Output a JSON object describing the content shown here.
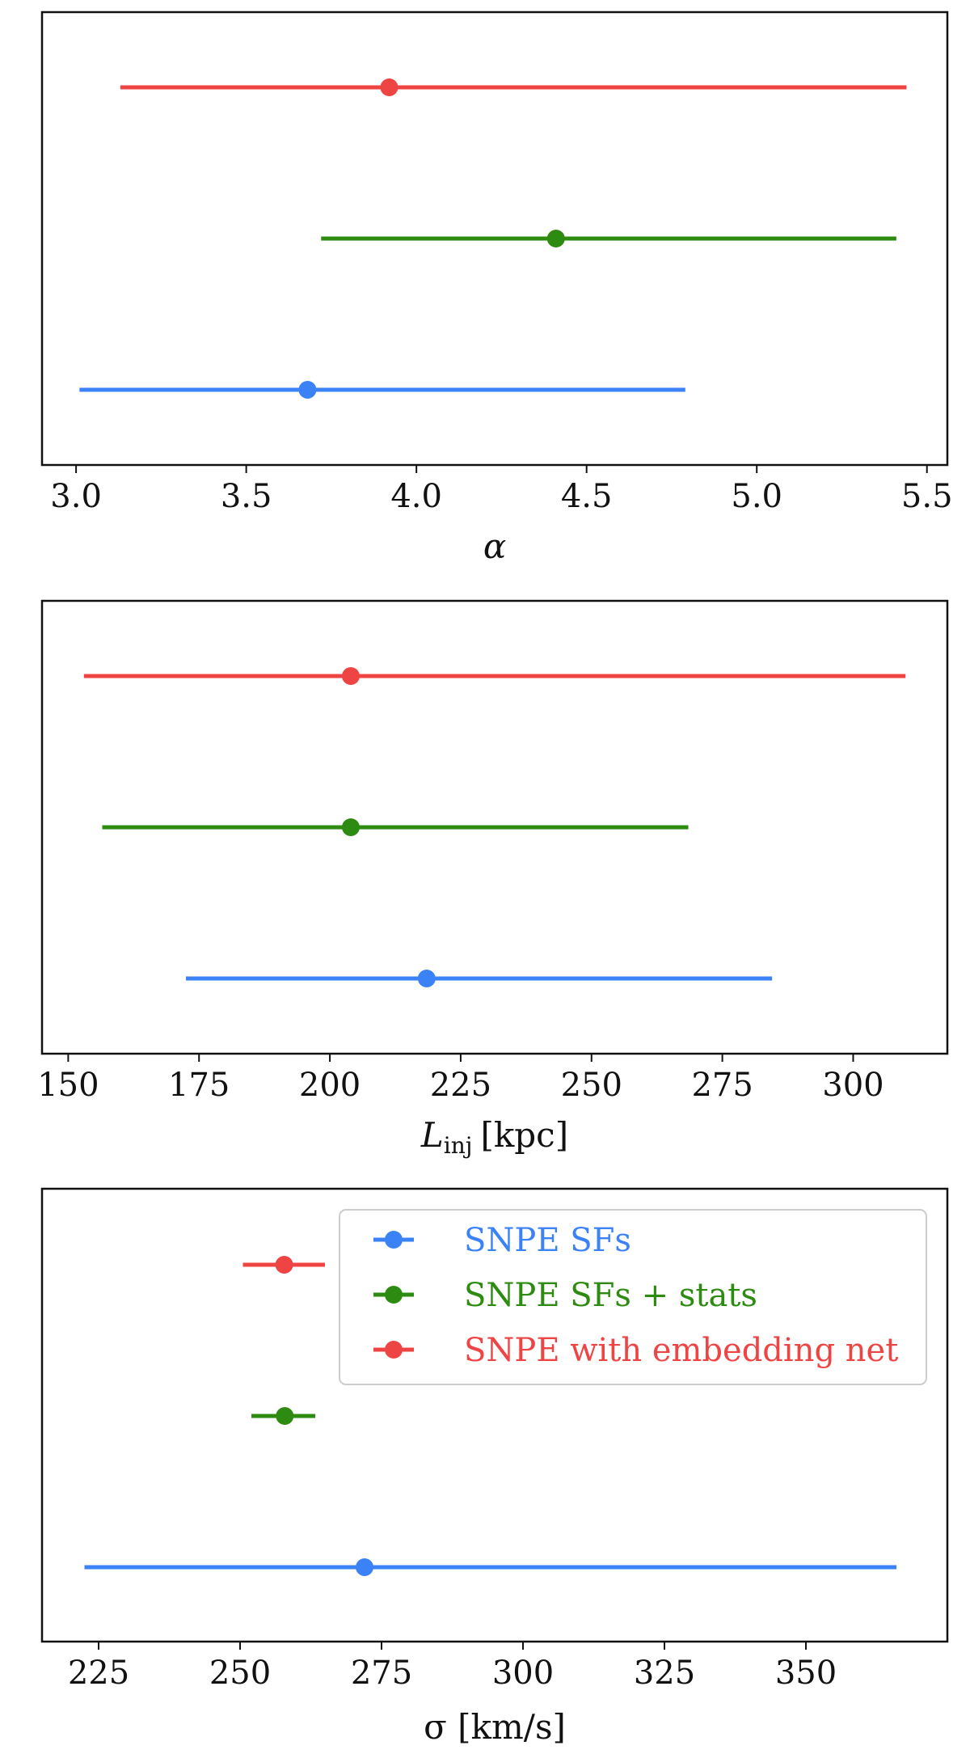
{
  "chart_data": [
    {
      "type": "errorbar",
      "title": "",
      "xlabel": "α",
      "xlim": [
        2.9,
        5.56
      ],
      "xticks": [
        3.0,
        3.5,
        4.0,
        4.5,
        5.0,
        5.5
      ],
      "xtick_labels": [
        "3.0",
        "3.5",
        "4.0",
        "4.5",
        "5.0",
        "5.5"
      ],
      "grid": false,
      "series": [
        {
          "name": "SNPE with embedding net",
          "color": "#ef4444",
          "value": 3.92,
          "low": 3.13,
          "high": 5.44
        },
        {
          "name": "SNPE SFs + stats",
          "color": "#2e8b11",
          "value": 4.41,
          "low": 3.72,
          "high": 5.41
        },
        {
          "name": "SNPE SFs",
          "color": "#3b82f6",
          "value": 3.68,
          "low": 3.01,
          "high": 4.79
        }
      ]
    },
    {
      "type": "errorbar",
      "title": "",
      "xlabel": "L_inj [kpc]",
      "xlabel_main": "L",
      "xlabel_sub": "inj",
      "xlabel_unit": "[kpc]",
      "xlim": [
        145,
        318
      ],
      "xticks": [
        150,
        175,
        200,
        225,
        250,
        275,
        300
      ],
      "xtick_labels": [
        "150",
        "175",
        "200",
        "225",
        "250",
        "275",
        "300"
      ],
      "grid": false,
      "series": [
        {
          "name": "SNPE with embedding net",
          "color": "#ef4444",
          "value": 204,
          "low": 153,
          "high": 310
        },
        {
          "name": "SNPE SFs + stats",
          "color": "#2e8b11",
          "value": 204,
          "low": 156.5,
          "high": 268.5
        },
        {
          "name": "SNPE SFs",
          "color": "#3b82f6",
          "value": 218.5,
          "low": 172.5,
          "high": 284.5
        }
      ]
    },
    {
      "type": "errorbar",
      "title": "",
      "xlabel": "σ [km/s]",
      "xlim": [
        215,
        375
      ],
      "xticks": [
        225,
        250,
        275,
        300,
        325,
        350
      ],
      "xtick_labels": [
        "225",
        "250",
        "275",
        "300",
        "325",
        "350"
      ],
      "grid": false,
      "legend": "top-right",
      "series": [
        {
          "name": "SNPE with embedding net",
          "color": "#ef4444",
          "value": 257.8,
          "low": 250.5,
          "high": 265
        },
        {
          "name": "SNPE SFs + stats",
          "color": "#2e8b11",
          "value": 257.9,
          "low": 252,
          "high": 263.3
        },
        {
          "name": "SNPE SFs",
          "color": "#3b82f6",
          "value": 272,
          "low": 222.5,
          "high": 366
        }
      ]
    }
  ],
  "legend": {
    "entries": [
      {
        "label": "SNPE SFs",
        "color": "#3b82f6"
      },
      {
        "label": "SNPE SFs + stats",
        "color": "#2e8b11"
      },
      {
        "label": "SNPE with embedding net",
        "color": "#ef4444"
      }
    ]
  }
}
